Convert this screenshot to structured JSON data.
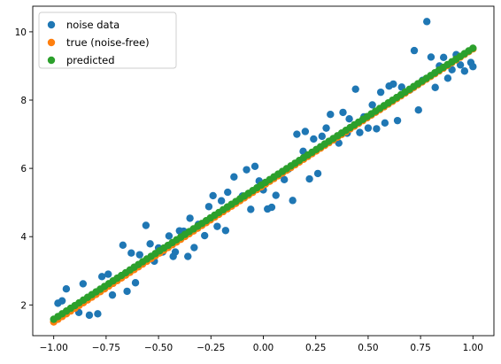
{
  "chart_data": {
    "type": "scatter",
    "title": "",
    "xlabel": "",
    "ylabel": "",
    "xlim": [
      -1.1,
      1.1
    ],
    "ylim": [
      1.1,
      10.75
    ],
    "grid": false,
    "legend_position": "top-left",
    "xticks": [
      -1.0,
      -0.75,
      -0.5,
      -0.25,
      0.0,
      0.25,
      0.5,
      0.75,
      1.0
    ],
    "xtick_labels": [
      "−1.00",
      "−0.75",
      "−0.50",
      "−0.25",
      "0.00",
      "0.25",
      "0.50",
      "0.75",
      "1.00"
    ],
    "yticks": [
      2,
      4,
      6,
      8,
      10
    ],
    "ytick_labels": [
      "2",
      "4",
      "6",
      "8",
      "10"
    ],
    "series": [
      {
        "name": "noise data",
        "color": "#1f77b4",
        "points": [
          [
            -0.98,
            2.05
          ],
          [
            -0.96,
            2.12
          ],
          [
            -0.94,
            2.47
          ],
          [
            -0.92,
            1.85
          ],
          [
            -0.88,
            1.78
          ],
          [
            -0.86,
            2.62
          ],
          [
            -0.83,
            1.7
          ],
          [
            -0.79,
            1.74
          ],
          [
            -0.77,
            2.83
          ],
          [
            -0.74,
            2.9
          ],
          [
            -0.72,
            2.29
          ],
          [
            -0.7,
            2.75
          ],
          [
            -0.67,
            3.75
          ],
          [
            -0.65,
            2.4
          ],
          [
            -0.63,
            3.52
          ],
          [
            -0.61,
            2.65
          ],
          [
            -0.59,
            3.47
          ],
          [
            -0.56,
            4.33
          ],
          [
            -0.54,
            3.79
          ],
          [
            -0.52,
            3.28
          ],
          [
            -0.5,
            3.67
          ],
          [
            -0.48,
            3.55
          ],
          [
            -0.45,
            4.02
          ],
          [
            -0.43,
            3.42
          ],
          [
            -0.42,
            3.55
          ],
          [
            -0.4,
            4.17
          ],
          [
            -0.38,
            4.16
          ],
          [
            -0.36,
            3.42
          ],
          [
            -0.35,
            4.54
          ],
          [
            -0.33,
            3.68
          ],
          [
            -0.31,
            4.36
          ],
          [
            -0.28,
            4.03
          ],
          [
            -0.26,
            4.88
          ],
          [
            -0.24,
            5.2
          ],
          [
            -0.22,
            4.3
          ],
          [
            -0.2,
            5.05
          ],
          [
            -0.18,
            4.18
          ],
          [
            -0.17,
            5.3
          ],
          [
            -0.14,
            5.75
          ],
          [
            -0.1,
            5.19
          ],
          [
            -0.08,
            5.96
          ],
          [
            -0.06,
            4.8
          ],
          [
            -0.04,
            6.06
          ],
          [
            -0.02,
            5.63
          ],
          [
            0.0,
            5.37
          ],
          [
            0.02,
            4.81
          ],
          [
            0.04,
            4.86
          ],
          [
            0.06,
            5.21
          ],
          [
            0.1,
            5.67
          ],
          [
            0.12,
            5.98
          ],
          [
            0.14,
            5.06
          ],
          [
            0.16,
            7.0
          ],
          [
            0.19,
            6.5
          ],
          [
            0.2,
            7.08
          ],
          [
            0.22,
            5.69
          ],
          [
            0.24,
            6.86
          ],
          [
            0.26,
            5.85
          ],
          [
            0.28,
            6.94
          ],
          [
            0.3,
            7.18
          ],
          [
            0.32,
            7.58
          ],
          [
            0.36,
            6.74
          ],
          [
            0.38,
            7.64
          ],
          [
            0.4,
            7.03
          ],
          [
            0.41,
            7.45
          ],
          [
            0.44,
            8.32
          ],
          [
            0.46,
            7.05
          ],
          [
            0.48,
            7.51
          ],
          [
            0.5,
            7.18
          ],
          [
            0.52,
            7.86
          ],
          [
            0.54,
            7.16
          ],
          [
            0.56,
            8.23
          ],
          [
            0.58,
            7.33
          ],
          [
            0.6,
            8.41
          ],
          [
            0.62,
            8.47
          ],
          [
            0.64,
            7.4
          ],
          [
            0.66,
            8.38
          ],
          [
            0.7,
            8.3
          ],
          [
            0.72,
            9.45
          ],
          [
            0.74,
            7.71
          ],
          [
            0.76,
            8.58
          ],
          [
            0.78,
            10.3
          ],
          [
            0.8,
            9.26
          ],
          [
            0.82,
            8.37
          ],
          [
            0.84,
            9.0
          ],
          [
            0.86,
            9.25
          ],
          [
            0.88,
            8.64
          ],
          [
            0.9,
            8.89
          ],
          [
            0.92,
            9.33
          ],
          [
            0.94,
            9.03
          ],
          [
            0.96,
            8.85
          ],
          [
            0.99,
            9.1
          ],
          [
            1.0,
            8.98
          ]
        ]
      },
      {
        "name": "true (noise-free)",
        "color": "#ff7f0e",
        "line": {
          "intercept": 5.5,
          "slope": 4.0
        },
        "x_range": [
          -1.0,
          1.0
        ],
        "n_points": 100
      },
      {
        "name": "predicted",
        "color": "#2ca02c",
        "line": {
          "intercept": 5.55,
          "slope": 3.97
        },
        "x_range": [
          -1.0,
          1.0
        ],
        "n_points": 100
      }
    ]
  }
}
